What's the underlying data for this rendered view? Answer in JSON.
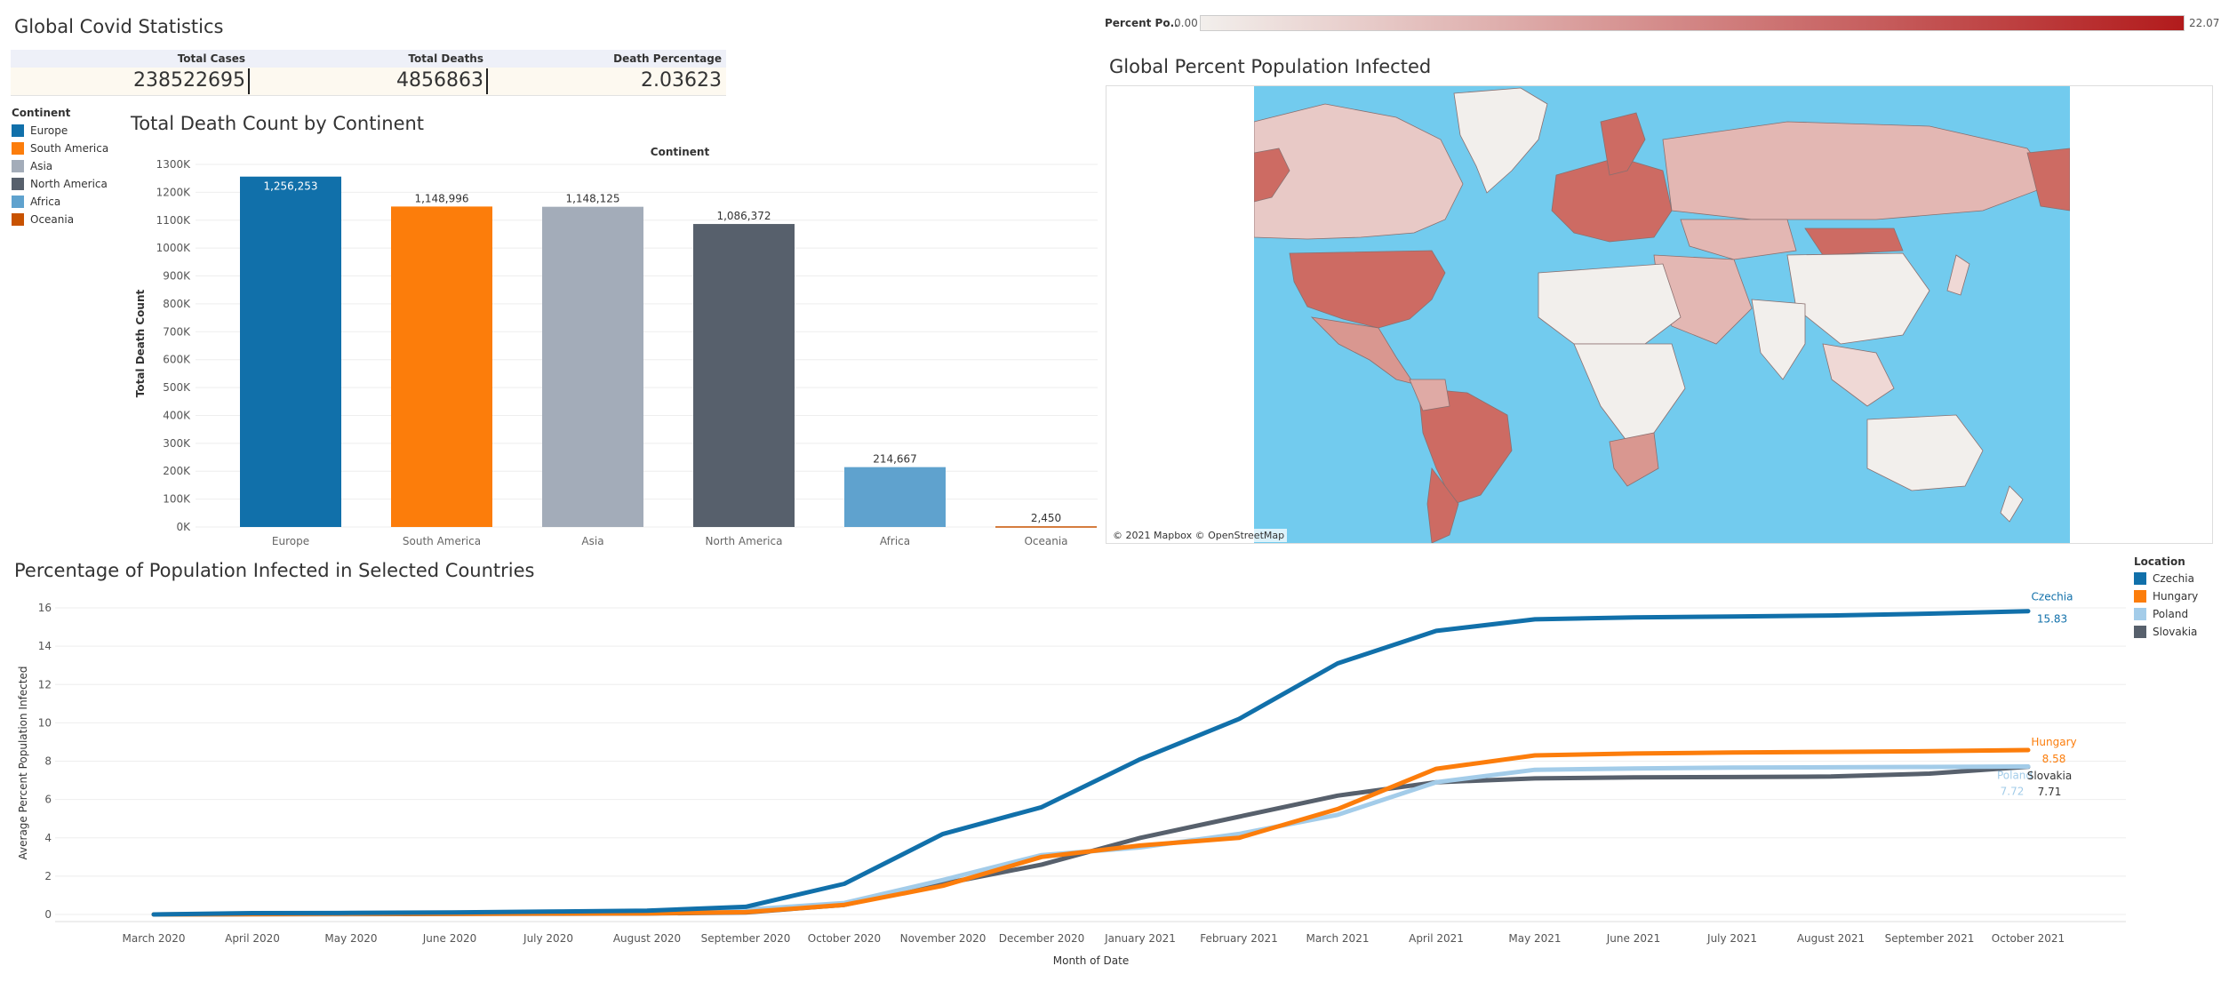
{
  "stats": {
    "title": "Global Covid Statistics",
    "columns": [
      "Total Cases",
      "Total Deaths",
      "Death Percentage"
    ],
    "values": [
      "238522695",
      "4856863",
      "2.03623"
    ]
  },
  "continent_legend": {
    "title": "Continent",
    "items": [
      {
        "label": "Europe",
        "color": "#1170aa"
      },
      {
        "label": "South America",
        "color": "#fc7d0b"
      },
      {
        "label": "Asia",
        "color": "#a3acb9"
      },
      {
        "label": "North America",
        "color": "#57606c"
      },
      {
        "label": "Africa",
        "color": "#5fa2ce"
      },
      {
        "label": "Oceania",
        "color": "#c85200"
      }
    ]
  },
  "death_chart": {
    "title": "Total Death Count by Continent",
    "header": "Continent"
  },
  "map": {
    "title": "Global Percent Population Infected",
    "legend_label": "Percent Po..",
    "scale_min": "0.00",
    "scale_max": "22.07",
    "scale_colors": [
      "#f2efec",
      "#b21b1c"
    ],
    "attribution": "© 2021 Mapbox © OpenStreetMap"
  },
  "location_legend": {
    "title": "Location",
    "items": [
      {
        "label": "Czechia",
        "color": "#1170aa"
      },
      {
        "label": "Hungary",
        "color": "#fc7d0b"
      },
      {
        "label": "Poland",
        "color": "#a3cce9"
      },
      {
        "label": "Slovakia",
        "color": "#57606c"
      }
    ]
  },
  "line_chart": {
    "title": "Percentage of Population Infected in Selected Countries"
  },
  "chart_data": [
    {
      "type": "bar",
      "title": "Total Death Count by Continent",
      "header": "Continent",
      "xlabel": "",
      "ylabel": "Total Death Count",
      "categories": [
        "Europe",
        "South America",
        "Asia",
        "North America",
        "Africa",
        "Oceania"
      ],
      "values": [
        1256253,
        1148996,
        1148125,
        1086372,
        214667,
        2450
      ],
      "value_labels": [
        "1,256,253",
        "1,148,996",
        "1,148,125",
        "1,086,372",
        "214,667",
        "2,450"
      ],
      "colors": [
        "#1170aa",
        "#fc7d0b",
        "#a3acb9",
        "#57606c",
        "#5fa2ce",
        "#c85200"
      ],
      "yticks": [
        0,
        100000,
        200000,
        300000,
        400000,
        500000,
        600000,
        700000,
        800000,
        900000,
        1000000,
        1100000,
        1200000,
        1300000
      ],
      "ytick_labels": [
        "0K",
        "100K",
        "200K",
        "300K",
        "400K",
        "500K",
        "600K",
        "700K",
        "800K",
        "900K",
        "1000K",
        "1100K",
        "1200K",
        "1300K"
      ],
      "ylim": [
        0,
        1300000
      ],
      "grid": true
    },
    {
      "type": "line",
      "title": "Percentage of Population Infected in Selected Countries",
      "xlabel": "Month of Date",
      "ylabel": "Average Percent Population Infected",
      "x": [
        "March 2020",
        "April 2020",
        "May 2020",
        "June 2020",
        "July 2020",
        "August 2020",
        "September 2020",
        "October 2020",
        "November 2020",
        "December 2020",
        "January 2021",
        "February 2021",
        "March 2021",
        "April 2021",
        "May 2021",
        "June 2021",
        "July 2021",
        "August 2021",
        "September 2021",
        "October 2021"
      ],
      "yticks": [
        0,
        2,
        4,
        6,
        8,
        10,
        12,
        14,
        16
      ],
      "ylim": [
        0,
        16
      ],
      "grid": true,
      "series": [
        {
          "name": "Czechia",
          "color": "#1170aa",
          "end_label": "15.83",
          "values": [
            0.0,
            0.07,
            0.08,
            0.1,
            0.15,
            0.2,
            0.4,
            1.6,
            4.2,
            5.6,
            8.1,
            10.2,
            13.1,
            14.8,
            15.4,
            15.5,
            15.55,
            15.6,
            15.7,
            15.83
          ]
        },
        {
          "name": "Hungary",
          "color": "#fc7d0b",
          "end_label": "8.58",
          "values": [
            0.0,
            0.02,
            0.04,
            0.04,
            0.05,
            0.06,
            0.12,
            0.5,
            1.5,
            3.0,
            3.6,
            4.0,
            5.5,
            7.6,
            8.3,
            8.4,
            8.45,
            8.48,
            8.52,
            8.58
          ]
        },
        {
          "name": "Poland",
          "color": "#a3cce9",
          "end_label": "7.72",
          "values": [
            0.0,
            0.02,
            0.03,
            0.06,
            0.1,
            0.15,
            0.25,
            0.6,
            1.8,
            3.1,
            3.5,
            4.2,
            5.2,
            6.9,
            7.55,
            7.62,
            7.66,
            7.68,
            7.7,
            7.72
          ]
        },
        {
          "name": "Slovakia",
          "color": "#57606c",
          "end_label": "7.71",
          "values": [
            0.0,
            0.01,
            0.02,
            0.03,
            0.04,
            0.05,
            0.1,
            0.5,
            1.6,
            2.6,
            4.0,
            5.1,
            6.2,
            6.9,
            7.1,
            7.15,
            7.17,
            7.2,
            7.35,
            7.71
          ]
        }
      ]
    }
  ]
}
